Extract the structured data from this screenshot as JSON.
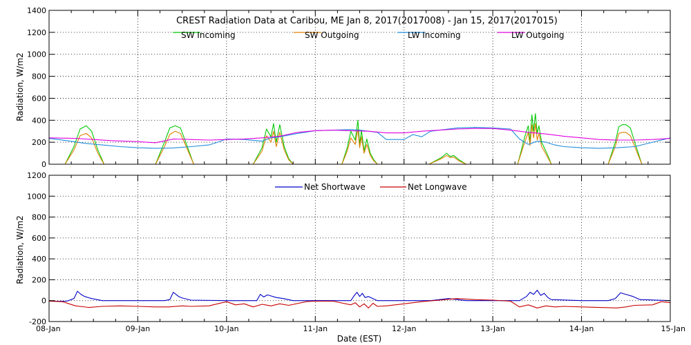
{
  "figure": {
    "xlabel": "Date (EST)",
    "x_tick_labels": [
      "08-Jan",
      "09-Jan",
      "10-Jan",
      "11-Jan",
      "12-Jan",
      "13-Jan",
      "14-Jan",
      "15-Jan"
    ]
  },
  "chart_data": [
    {
      "type": "line",
      "title": "CREST Radiation Data at Caribou, ME   Jan  8, 2017(2017008) - Jan 15, 2017(2017015)",
      "xlabel": "Date (EST)",
      "ylabel": "Radiation, W/m2",
      "xlim": [
        0,
        7
      ],
      "ylim": [
        0,
        1400
      ],
      "y_ticks": [
        0,
        200,
        400,
        600,
        800,
        1000,
        1200,
        1400
      ],
      "grid": true,
      "legend": "top-center",
      "series": [
        {
          "name": "SW Incoming",
          "color": "#00c800",
          "x": [
            0,
            0.18,
            0.28,
            0.35,
            0.42,
            0.48,
            0.55,
            0.62,
            1.0,
            1.2,
            1.3,
            1.36,
            1.42,
            1.48,
            1.54,
            1.63,
            2.0,
            2.3,
            2.4,
            2.45,
            2.5,
            2.53,
            2.56,
            2.6,
            2.65,
            2.7,
            2.75,
            3.0,
            3.3,
            3.36,
            3.4,
            3.45,
            3.48,
            3.5,
            3.52,
            3.55,
            3.58,
            3.62,
            3.66,
            3.7,
            4.0,
            4.28,
            4.35,
            4.42,
            4.48,
            4.52,
            4.56,
            4.62,
            4.7,
            5.0,
            5.28,
            5.32,
            5.36,
            5.4,
            5.42,
            5.44,
            5.46,
            5.48,
            5.5,
            5.52,
            5.55,
            5.58,
            5.62,
            5.66,
            6.0,
            6.3,
            6.38,
            6.42,
            6.46,
            6.5,
            6.55,
            6.6,
            6.68,
            7.0
          ],
          "y": [
            0,
            0,
            160,
            320,
            350,
            300,
            130,
            0,
            0,
            0,
            200,
            330,
            350,
            330,
            200,
            0,
            0,
            0,
            150,
            320,
            250,
            370,
            200,
            360,
            160,
            50,
            0,
            0,
            0,
            150,
            300,
            220,
            400,
            180,
            310,
            120,
            230,
            100,
            40,
            0,
            0,
            0,
            30,
            60,
            100,
            70,
            80,
            40,
            0,
            0,
            0,
            120,
            250,
            350,
            200,
            450,
            300,
            460,
            280,
            350,
            200,
            150,
            80,
            0,
            0,
            0,
            200,
            340,
            360,
            360,
            330,
            200,
            0,
            0
          ]
        },
        {
          "name": "SW Outgoing",
          "color": "#e08000",
          "x": [
            0,
            0.18,
            0.28,
            0.35,
            0.42,
            0.48,
            0.55,
            0.62,
            1.0,
            1.2,
            1.3,
            1.36,
            1.42,
            1.48,
            1.54,
            1.63,
            2.0,
            2.3,
            2.4,
            2.45,
            2.5,
            2.53,
            2.56,
            2.6,
            2.65,
            2.7,
            2.75,
            3.0,
            3.3,
            3.36,
            3.4,
            3.45,
            3.48,
            3.5,
            3.52,
            3.55,
            3.58,
            3.62,
            3.66,
            3.7,
            4.0,
            4.28,
            4.35,
            4.42,
            4.48,
            4.52,
            4.56,
            4.62,
            4.7,
            5.0,
            5.28,
            5.32,
            5.36,
            5.4,
            5.42,
            5.44,
            5.46,
            5.48,
            5.5,
            5.52,
            5.55,
            5.58,
            5.62,
            5.66,
            6.0,
            6.3,
            6.38,
            6.42,
            6.46,
            6.5,
            6.55,
            6.6,
            6.68,
            7.0
          ],
          "y": [
            0,
            0,
            130,
            260,
            280,
            240,
            100,
            0,
            0,
            0,
            160,
            270,
            300,
            280,
            170,
            0,
            0,
            0,
            120,
            260,
            200,
            300,
            160,
            290,
            130,
            40,
            0,
            0,
            0,
            120,
            240,
            180,
            320,
            150,
            250,
            100,
            180,
            80,
            30,
            0,
            0,
            0,
            25,
            50,
            80,
            60,
            65,
            30,
            0,
            0,
            0,
            100,
            200,
            290,
            170,
            360,
            240,
            370,
            220,
            280,
            160,
            120,
            60,
            0,
            0,
            0,
            160,
            280,
            290,
            290,
            260,
            160,
            0,
            0
          ]
        },
        {
          "name": "LW Incoming",
          "color": "#1e8cdc",
          "x": [
            0,
            0.2,
            0.4,
            0.6,
            0.8,
            1.0,
            1.2,
            1.4,
            1.6,
            1.8,
            1.9,
            2.0,
            2.2,
            2.4,
            2.5,
            2.6,
            2.8,
            3.0,
            3.2,
            3.4,
            3.5,
            3.6,
            3.7,
            3.8,
            4.0,
            4.1,
            4.2,
            4.3,
            4.4,
            4.6,
            4.8,
            5.0,
            5.2,
            5.3,
            5.4,
            5.5,
            5.6,
            5.7,
            5.8,
            6.0,
            6.2,
            6.4,
            6.6,
            6.8,
            7.0
          ],
          "y": [
            235,
            215,
            190,
            175,
            160,
            150,
            145,
            148,
            160,
            175,
            200,
            230,
            225,
            210,
            240,
            250,
            280,
            305,
            310,
            315,
            310,
            300,
            290,
            225,
            225,
            270,
            250,
            300,
            310,
            330,
            335,
            330,
            320,
            230,
            180,
            210,
            200,
            175,
            160,
            150,
            145,
            150,
            160,
            200,
            240
          ]
        },
        {
          "name": "LW Outgoing",
          "color": "#e000e0",
          "x": [
            0,
            0.3,
            0.5,
            0.7,
            1.0,
            1.2,
            1.4,
            1.6,
            1.8,
            2.0,
            2.2,
            2.4,
            2.6,
            2.8,
            3.0,
            3.2,
            3.4,
            3.6,
            3.8,
            4.0,
            4.2,
            4.4,
            4.6,
            4.8,
            5.0,
            5.2,
            5.4,
            5.6,
            5.8,
            6.0,
            6.2,
            6.4,
            6.6,
            6.8,
            7.0
          ],
          "y": [
            240,
            235,
            225,
            215,
            205,
            195,
            230,
            225,
            220,
            225,
            230,
            240,
            255,
            290,
            305,
            310,
            305,
            300,
            285,
            285,
            300,
            310,
            320,
            325,
            325,
            310,
            290,
            275,
            255,
            240,
            225,
            220,
            220,
            225,
            235
          ]
        }
      ]
    },
    {
      "type": "line",
      "title": "",
      "xlabel": "Date (EST)",
      "ylabel": "Radiation, W/m2",
      "xlim": [
        0,
        7
      ],
      "ylim": [
        -200,
        1200
      ],
      "y_ticks": [
        -200,
        0,
        200,
        400,
        600,
        800,
        1000,
        1200
      ],
      "grid": true,
      "legend": "top-center",
      "series": [
        {
          "name": "Net Shortwave",
          "color": "#0000c8",
          "x": [
            0,
            0.2,
            0.28,
            0.32,
            0.36,
            0.4,
            0.48,
            0.6,
            1.0,
            1.3,
            1.36,
            1.4,
            1.46,
            1.5,
            1.6,
            2.0,
            2.34,
            2.38,
            2.42,
            2.46,
            2.5,
            2.56,
            2.64,
            2.75,
            3.0,
            3.4,
            3.44,
            3.47,
            3.5,
            3.53,
            3.56,
            3.6,
            3.66,
            3.7,
            4.0,
            4.3,
            4.4,
            4.5,
            4.6,
            4.7,
            5.0,
            5.3,
            5.38,
            5.42,
            5.46,
            5.5,
            5.54,
            5.58,
            5.62,
            5.66,
            6.0,
            6.3,
            6.38,
            6.44,
            6.5,
            6.58,
            6.66,
            7.0
          ],
          "y": [
            -5,
            -5,
            20,
            90,
            60,
            40,
            20,
            0,
            0,
            0,
            10,
            80,
            40,
            25,
            5,
            0,
            0,
            60,
            35,
            55,
            45,
            30,
            20,
            0,
            0,
            0,
            50,
            80,
            40,
            70,
            30,
            40,
            15,
            0,
            0,
            0,
            10,
            20,
            10,
            0,
            0,
            0,
            40,
            80,
            60,
            100,
            50,
            70,
            30,
            10,
            0,
            0,
            20,
            75,
            60,
            40,
            10,
            0
          ]
        },
        {
          "name": "Net Longwave",
          "color": "#c80000",
          "x": [
            0,
            0.15,
            0.3,
            0.45,
            0.6,
            0.8,
            1.0,
            1.2,
            1.35,
            1.5,
            1.6,
            1.8,
            2.0,
            2.1,
            2.2,
            2.3,
            2.4,
            2.5,
            2.6,
            2.7,
            2.9,
            3.0,
            3.2,
            3.4,
            3.45,
            3.5,
            3.55,
            3.6,
            3.65,
            3.7,
            3.8,
            3.9,
            4.0,
            4.2,
            4.4,
            4.6,
            4.8,
            5.0,
            5.2,
            5.3,
            5.4,
            5.5,
            5.6,
            5.7,
            5.8,
            6.0,
            6.2,
            6.4,
            6.5,
            6.6,
            6.8,
            6.9,
            7.0
          ],
          "y": [
            -5,
            -10,
            -50,
            -65,
            -55,
            -50,
            -55,
            -60,
            -60,
            -50,
            -55,
            -50,
            -10,
            -40,
            -30,
            -60,
            -35,
            -50,
            -30,
            -45,
            -10,
            -5,
            -5,
            -40,
            -20,
            -60,
            -30,
            -70,
            -25,
            -55,
            -50,
            -40,
            -30,
            -10,
            5,
            20,
            10,
            5,
            -5,
            -60,
            -40,
            -70,
            -50,
            -60,
            -55,
            -60,
            -65,
            -70,
            -60,
            -45,
            -40,
            -10,
            -20
          ]
        }
      ]
    }
  ]
}
